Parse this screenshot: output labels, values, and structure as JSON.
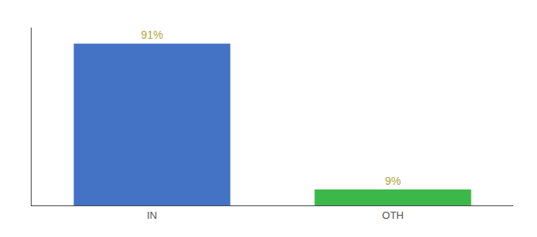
{
  "chart_data": {
    "type": "bar",
    "categories": [
      "IN",
      "OTH"
    ],
    "values": [
      91,
      9
    ],
    "colors": [
      "#4472c4",
      "#3cb84a"
    ],
    "value_labels": [
      "91%",
      "9%"
    ],
    "data_labels": true,
    "ylim": [
      0,
      100
    ],
    "yticks": [],
    "tick_labels": "x",
    "grid": false
  }
}
